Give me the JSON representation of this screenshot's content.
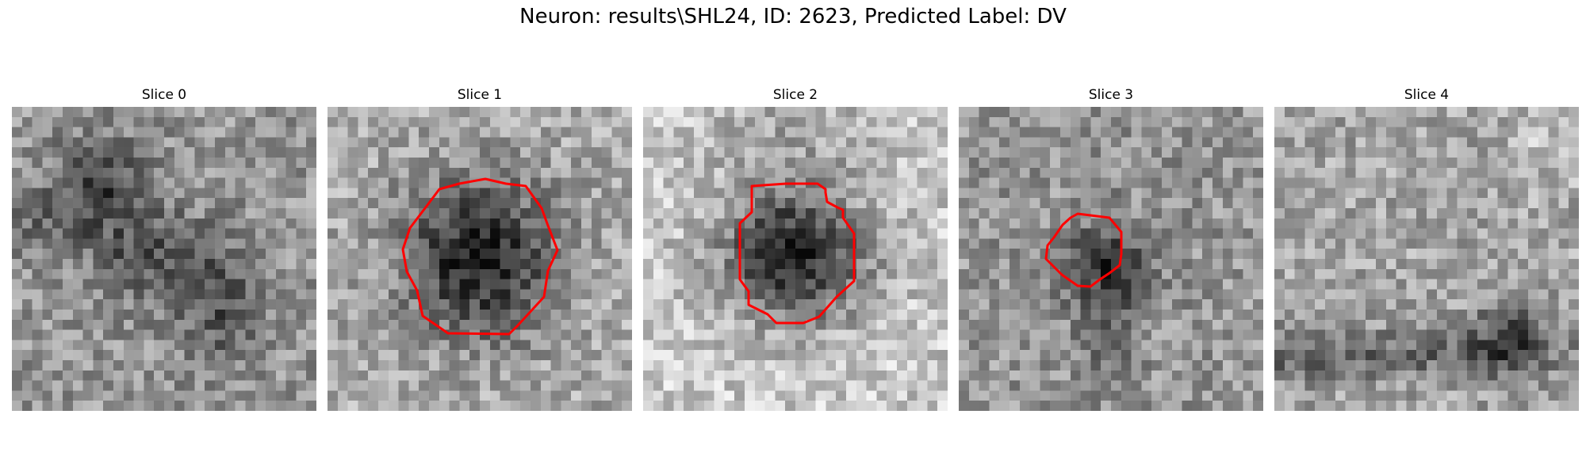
{
  "figure": {
    "title": "Neuron: results\\SHL24, ID: 2623, Predicted Label: DV"
  },
  "colors": {
    "contour": "#ff0000",
    "colormap": "gray"
  },
  "slices": [
    {
      "title": "Slice 0",
      "has_contour": false
    },
    {
      "title": "Slice 1",
      "has_contour": true
    },
    {
      "title": "Slice 2",
      "has_contour": true
    },
    {
      "title": "Slice 3",
      "has_contour": true
    },
    {
      "title": "Slice 4",
      "has_contour": false
    }
  ]
}
